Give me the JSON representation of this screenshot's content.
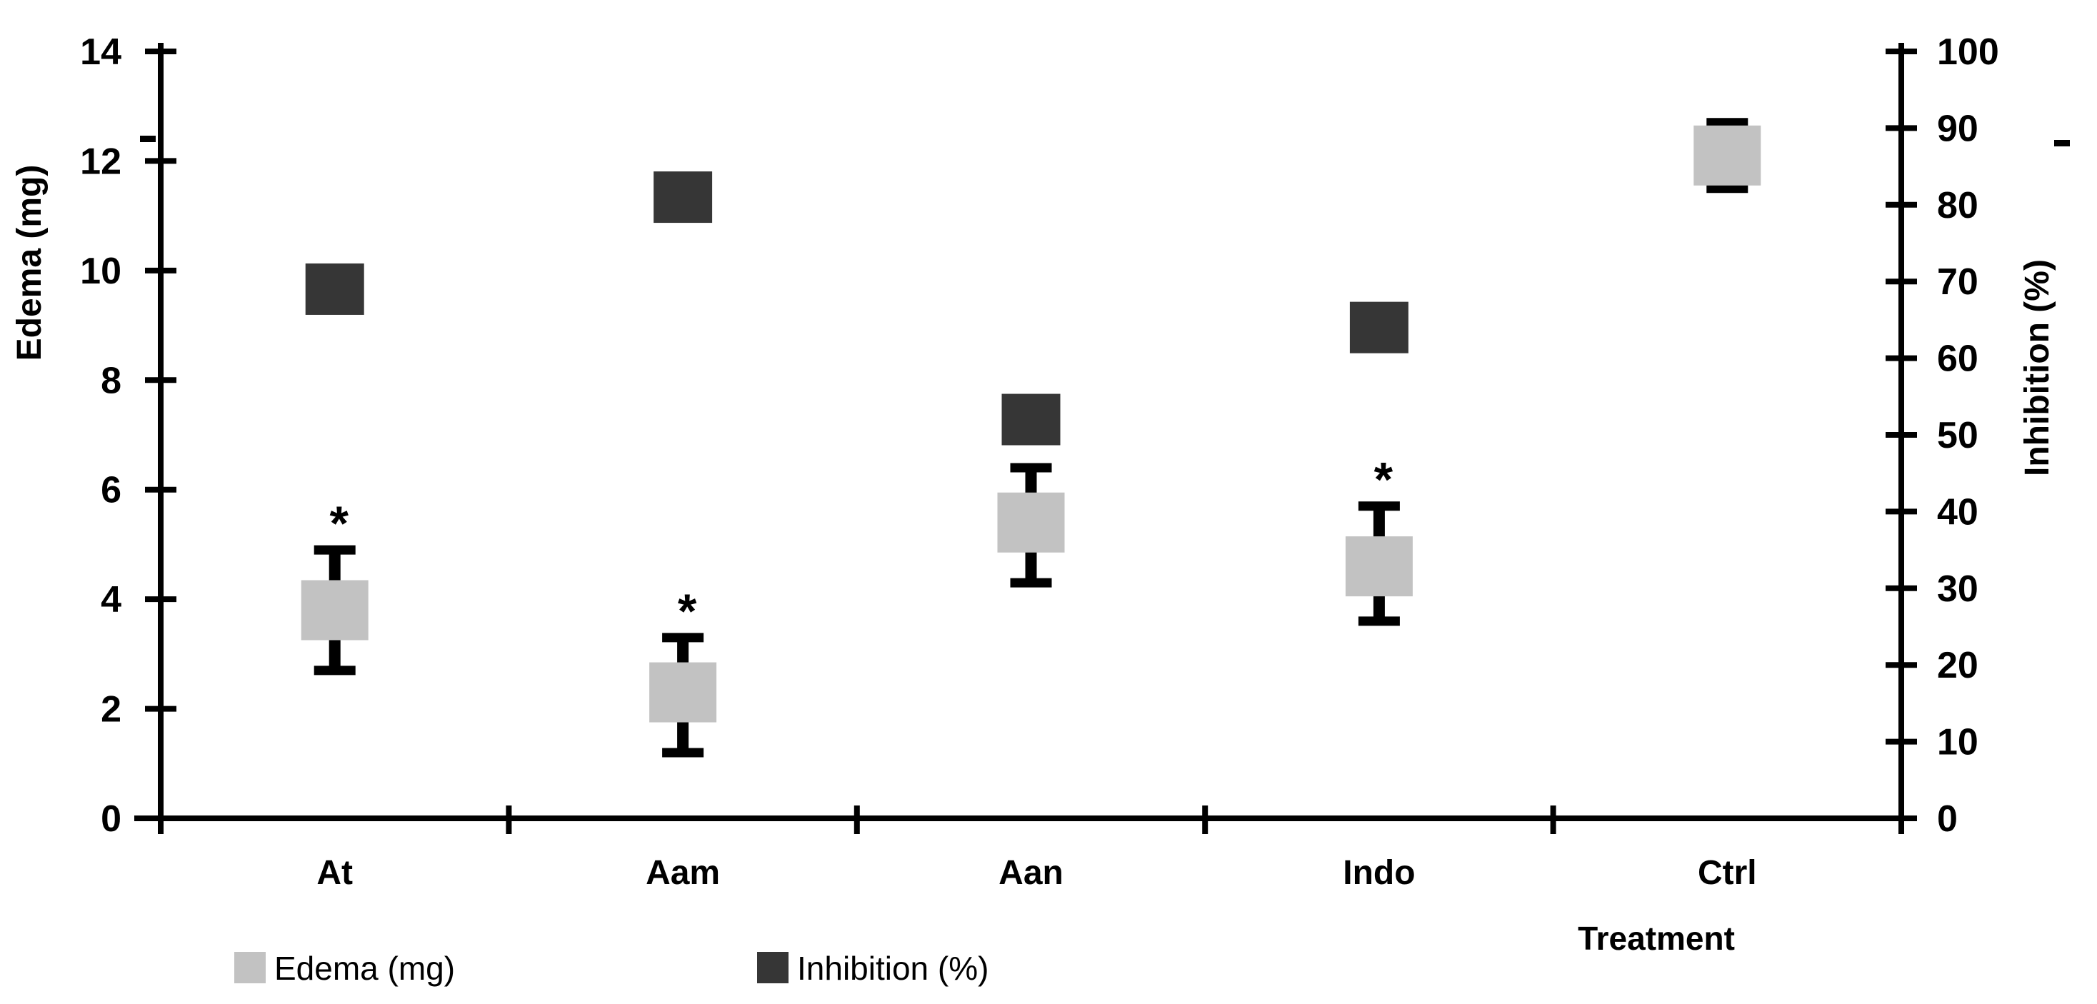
{
  "figure": {
    "background": "#ffffff",
    "ink_color": "#000000"
  },
  "chart_data": {
    "type": "scatter",
    "title": "",
    "categories": [
      "At",
      "Aam",
      "Aan",
      "Indo",
      "Ctrl"
    ],
    "x_axis": {
      "title": "Treatment"
    },
    "left_axis": {
      "title": "Edema (mg)",
      "trailing_mark": ".",
      "min": 0,
      "max": 14,
      "ticks": [
        0,
        2,
        4,
        6,
        8,
        10,
        12,
        14
      ]
    },
    "right_axis": {
      "title": "Inhibition (%)",
      "trailing_mark": ".",
      "min": 0,
      "max": 100,
      "ticks": [
        0,
        10,
        20,
        30,
        40,
        50,
        60,
        70,
        80,
        90,
        100
      ]
    },
    "grid": false,
    "legend_position": "bottom",
    "significance_symbol": "*",
    "series": [
      {
        "name": "Edema (mg)",
        "axis": "left",
        "color": "#c2c2c2",
        "marker": "square",
        "values": [
          3.8,
          2.3,
          5.4,
          4.6,
          12.1
        ],
        "error_upper": [
          4.9,
          3.3,
          6.4,
          5.7,
          12.7
        ],
        "error_lower": [
          2.7,
          1.2,
          4.3,
          3.6,
          11.5
        ],
        "significant": [
          true,
          true,
          true,
          true,
          false
        ]
      },
      {
        "name": "Inhibition (%)",
        "axis": "right",
        "color": "#363636",
        "marker": "square",
        "values": [
          69,
          81,
          52,
          64,
          null
        ],
        "error_upper": null,
        "error_lower": null,
        "significant": [
          false,
          false,
          false,
          false,
          false
        ]
      }
    ],
    "legend": [
      {
        "label": "Edema (mg)",
        "color": "#c2c2c2"
      },
      {
        "label": "Inhibition (%)",
        "color": "#363636"
      }
    ]
  }
}
